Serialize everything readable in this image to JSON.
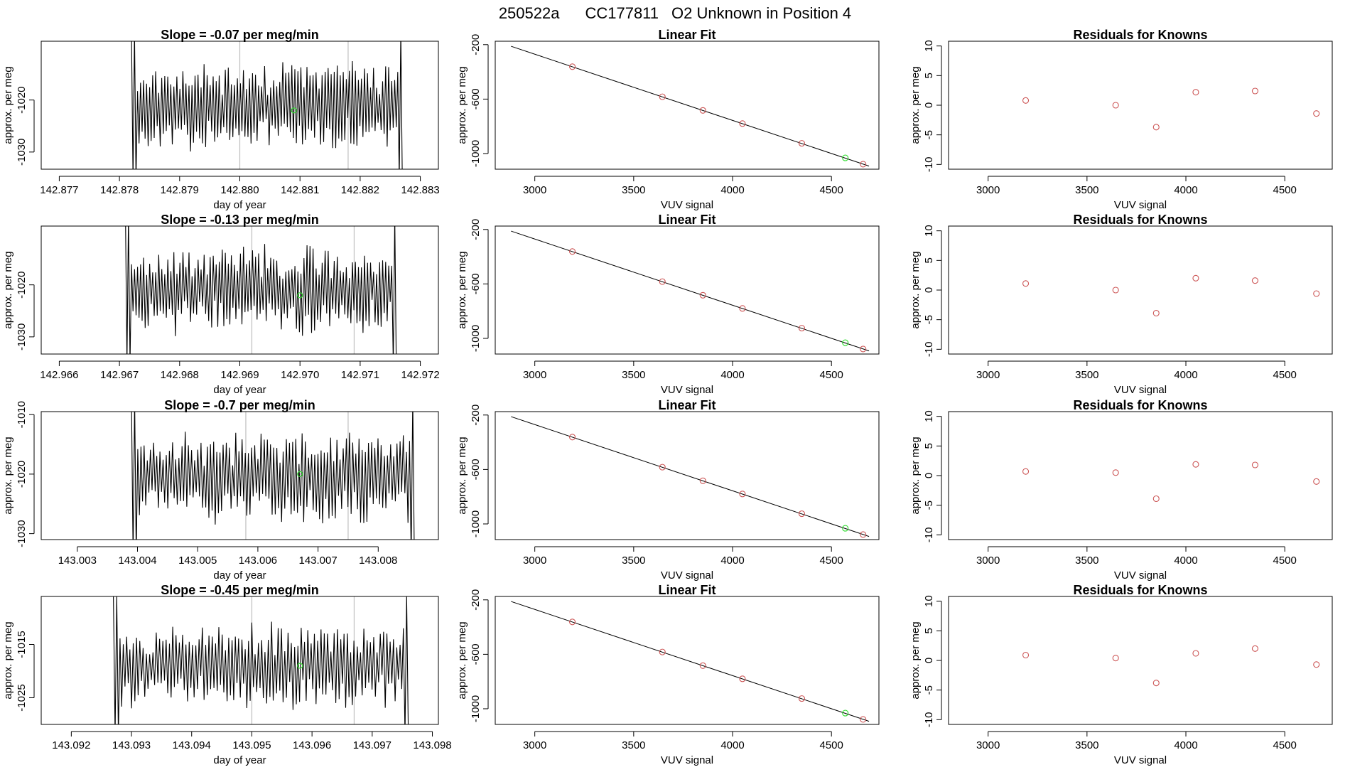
{
  "figure": {
    "header": {
      "run_id": "250522a",
      "cylinder": "CC177811",
      "description": "O2 Unknown in Position  4"
    },
    "colors": {
      "line": "#000000",
      "vline": "#bfbfbf",
      "green": "#33dd33",
      "red": "#cc5555",
      "axis": "#000000"
    }
  },
  "chart_data": [
    {
      "type": "line",
      "row": 0,
      "title": "Slope =  -0.07  per meg/min",
      "xlabel": "day of year",
      "ylabel": "approx. per meg",
      "xlim": [
        142.8767,
        142.8833
      ],
      "ylim": [
        -1033.3,
        -1008.7
      ],
      "xticks": [
        "142.877",
        "142.878",
        "142.879",
        "142.880",
        "142.881",
        "142.882",
        "142.883"
      ],
      "yticks": [
        -1020,
        -1030
      ],
      "series": {
        "x_start": 142.8782,
        "x_end": 142.8827,
        "n": 180,
        "mean": -1021.0,
        "amp": 6.5,
        "seed": 11
      },
      "vlines": [
        142.88,
        142.8818
      ],
      "green_point": {
        "x": 142.8809,
        "y": -1022
      }
    },
    {
      "type": "scatter",
      "row": 0,
      "title": "Linear Fit",
      "xlabel": "VUV signal",
      "ylabel": "approx. per meg",
      "xlim": [
        2800,
        4740
      ],
      "ylim": [
        -1115,
        -175
      ],
      "xticks": [
        3000,
        3500,
        4000,
        4500
      ],
      "yticks": [
        -200,
        -600,
        -1000
      ],
      "fit_line": {
        "x": [
          2880,
          4690
        ],
        "y": [
          -212,
          -1092
        ]
      },
      "points": [
        {
          "x": 3190,
          "y": -362
        },
        {
          "x": 3645,
          "y": -583
        },
        {
          "x": 3850,
          "y": -683
        },
        {
          "x": 4050,
          "y": -780
        },
        {
          "x": 4350,
          "y": -925
        },
        {
          "x": 4660,
          "y": -1078
        }
      ],
      "green_point": {
        "x": 4570,
        "y": -1032
      }
    },
    {
      "type": "scatter",
      "row": 0,
      "title": "Residuals for Knowns",
      "xlabel": "VUV signal",
      "ylabel": "approx. per meg",
      "xlim": [
        2800,
        4740
      ],
      "ylim": [
        -10.8,
        10.8
      ],
      "xticks": [
        3000,
        3500,
        4000,
        4500
      ],
      "yticks": [
        10,
        5,
        0,
        -5,
        -10
      ],
      "points": [
        {
          "x": 3190,
          "y": 0.8
        },
        {
          "x": 3645,
          "y": 0.0
        },
        {
          "x": 3850,
          "y": -3.7
        },
        {
          "x": 4050,
          "y": 2.2
        },
        {
          "x": 4350,
          "y": 2.4
        },
        {
          "x": 4660,
          "y": -1.4
        }
      ]
    },
    {
      "type": "line",
      "row": 1,
      "title": "Slope =  -0.13  per meg/min",
      "xlabel": "day of year",
      "ylabel": "approx. per meg",
      "xlim": [
        142.9657,
        142.9723
      ],
      "ylim": [
        -1033.3,
        -1008.7
      ],
      "xticks": [
        "142.966",
        "142.967",
        "142.968",
        "142.969",
        "142.970",
        "142.971",
        "142.972"
      ],
      "yticks": [
        -1020,
        -1030
      ],
      "series": {
        "x_start": 142.9671,
        "x_end": 142.9716,
        "n": 180,
        "mean": -1021.0,
        "amp": 6.5,
        "seed": 23
      },
      "vlines": [
        142.9692,
        142.9709
      ],
      "green_point": {
        "x": 142.97,
        "y": -1022
      }
    },
    {
      "type": "scatter",
      "row": 1,
      "title": "Linear Fit",
      "xlabel": "VUV signal",
      "ylabel": "approx. per meg",
      "xlim": [
        2800,
        4740
      ],
      "ylim": [
        -1115,
        -175
      ],
      "xticks": [
        3000,
        3500,
        4000,
        4500
      ],
      "yticks": [
        -200,
        -600,
        -1000
      ],
      "fit_line": {
        "x": [
          2880,
          4690
        ],
        "y": [
          -212,
          -1092
        ]
      },
      "points": [
        {
          "x": 3190,
          "y": -362
        },
        {
          "x": 3645,
          "y": -583
        },
        {
          "x": 3850,
          "y": -683
        },
        {
          "x": 4050,
          "y": -780
        },
        {
          "x": 4350,
          "y": -925
        },
        {
          "x": 4660,
          "y": -1078
        }
      ],
      "green_point": {
        "x": 4570,
        "y": -1032
      }
    },
    {
      "type": "scatter",
      "row": 1,
      "title": "Residuals for Knowns",
      "xlabel": "VUV signal",
      "ylabel": "approx. per meg",
      "xlim": [
        2800,
        4740
      ],
      "ylim": [
        -10.8,
        10.8
      ],
      "xticks": [
        3000,
        3500,
        4000,
        4500
      ],
      "yticks": [
        10,
        5,
        0,
        -5,
        -10
      ],
      "points": [
        {
          "x": 3190,
          "y": 1.1
        },
        {
          "x": 3645,
          "y": 0.0
        },
        {
          "x": 3850,
          "y": -3.9
        },
        {
          "x": 4050,
          "y": 2.0
        },
        {
          "x": 4350,
          "y": 1.6
        },
        {
          "x": 4660,
          "y": -0.6
        }
      ]
    },
    {
      "type": "line",
      "row": 2,
      "title": "Slope =  -0.7  per meg/min",
      "xlabel": "day of year",
      "ylabel": "approx. per meg",
      "xlim": [
        143.0024,
        143.009
      ],
      "ylim": [
        -1031.0,
        -1009.5
      ],
      "xticks": [
        "143.003",
        "143.004",
        "143.005",
        "143.006",
        "143.007",
        "143.008"
      ],
      "yticks": [
        -1010,
        -1020,
        -1030
      ],
      "series": {
        "x_start": 143.0039,
        "x_end": 143.0086,
        "n": 180,
        "mean": -1020.5,
        "amp": 6.0,
        "seed": 37
      },
      "vlines": [
        143.0058,
        143.0075
      ],
      "green_point": {
        "x": 143.0067,
        "y": -1020
      }
    },
    {
      "type": "scatter",
      "row": 2,
      "title": "Linear Fit",
      "xlabel": "VUV signal",
      "ylabel": "approx. per meg",
      "xlim": [
        2800,
        4740
      ],
      "ylim": [
        -1115,
        -175
      ],
      "xticks": [
        3000,
        3500,
        4000,
        4500
      ],
      "yticks": [
        -200,
        -600,
        -1000
      ],
      "fit_line": {
        "x": [
          2880,
          4690
        ],
        "y": [
          -212,
          -1092
        ]
      },
      "points": [
        {
          "x": 3190,
          "y": -362
        },
        {
          "x": 3645,
          "y": -583
        },
        {
          "x": 3850,
          "y": -683
        },
        {
          "x": 4050,
          "y": -780
        },
        {
          "x": 4350,
          "y": -925
        },
        {
          "x": 4660,
          "y": -1078
        }
      ],
      "green_point": {
        "x": 4570,
        "y": -1032
      }
    },
    {
      "type": "scatter",
      "row": 2,
      "title": "Residuals for Knowns",
      "xlabel": "VUV signal",
      "ylabel": "approx. per meg",
      "xlim": [
        2800,
        4740
      ],
      "ylim": [
        -10.8,
        10.8
      ],
      "xticks": [
        3000,
        3500,
        4000,
        4500
      ],
      "yticks": [
        10,
        5,
        0,
        -5,
        -10
      ],
      "points": [
        {
          "x": 3190,
          "y": 0.7
        },
        {
          "x": 3645,
          "y": 0.5
        },
        {
          "x": 3850,
          "y": -3.9
        },
        {
          "x": 4050,
          "y": 1.9
        },
        {
          "x": 4350,
          "y": 1.8
        },
        {
          "x": 4660,
          "y": -1.0
        }
      ]
    },
    {
      "type": "line",
      "row": 3,
      "title": "Slope =  -0.45  per meg/min",
      "xlabel": "day of year",
      "ylabel": "approx. per meg",
      "xlim": [
        143.0915,
        143.0981
      ],
      "ylim": [
        -1030.0,
        -1006.0
      ],
      "xticks": [
        "143.092",
        "143.093",
        "143.094",
        "143.095",
        "143.096",
        "143.097",
        "143.098"
      ],
      "yticks": [
        -1015,
        -1025
      ],
      "series": {
        "x_start": 143.0927,
        "x_end": 143.0976,
        "n": 180,
        "mean": -1019.0,
        "amp": 6.0,
        "seed": 53
      },
      "vlines": [
        143.095,
        143.0967
      ],
      "green_point": {
        "x": 143.0958,
        "y": -1019
      }
    },
    {
      "type": "scatter",
      "row": 3,
      "title": "Linear Fit",
      "xlabel": "VUV signal",
      "ylabel": "approx. per meg",
      "xlim": [
        2800,
        4740
      ],
      "ylim": [
        -1115,
        -175
      ],
      "xticks": [
        3000,
        3500,
        4000,
        4500
      ],
      "yticks": [
        -200,
        -600,
        -1000
      ],
      "fit_line": {
        "x": [
          2880,
          4690
        ],
        "y": [
          -212,
          -1092
        ]
      },
      "points": [
        {
          "x": 3190,
          "y": -362
        },
        {
          "x": 3645,
          "y": -583
        },
        {
          "x": 3850,
          "y": -683
        },
        {
          "x": 4050,
          "y": -780
        },
        {
          "x": 4350,
          "y": -925
        },
        {
          "x": 4660,
          "y": -1078
        }
      ],
      "green_point": {
        "x": 4570,
        "y": -1032
      }
    },
    {
      "type": "scatter",
      "row": 3,
      "title": "Residuals for Knowns",
      "xlabel": "VUV signal",
      "ylabel": "approx. per meg",
      "xlim": [
        2800,
        4740
      ],
      "ylim": [
        -10.8,
        10.8
      ],
      "xticks": [
        3000,
        3500,
        4000,
        4500
      ],
      "yticks": [
        10,
        5,
        0,
        -5,
        -10
      ],
      "points": [
        {
          "x": 3190,
          "y": 0.9
        },
        {
          "x": 3645,
          "y": 0.4
        },
        {
          "x": 3850,
          "y": -3.8
        },
        {
          "x": 4050,
          "y": 1.2
        },
        {
          "x": 4350,
          "y": 2.0
        },
        {
          "x": 4660,
          "y": -0.7
        }
      ]
    }
  ]
}
